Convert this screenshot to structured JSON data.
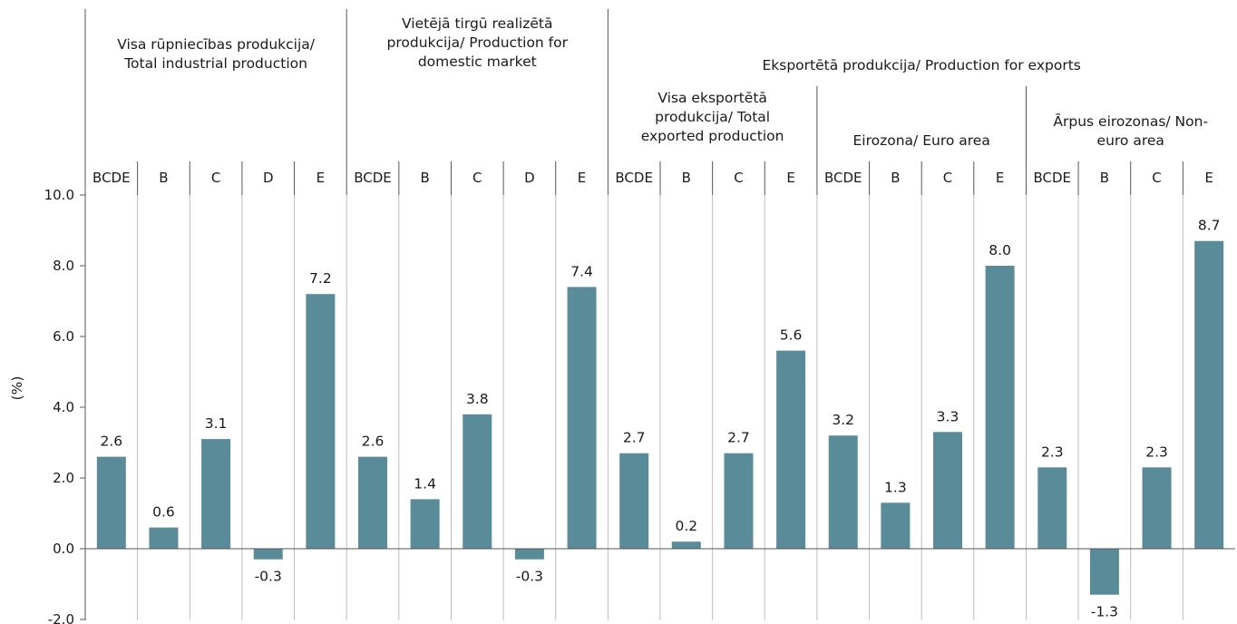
{
  "chart_data": {
    "type": "bar",
    "ylabel": "(%)",
    "ylim": [
      -2.0,
      10.0
    ],
    "yticks": [
      "-2.0",
      "0.0",
      "2.0",
      "4.0",
      "6.0",
      "8.0",
      "10.0"
    ],
    "bar_color": "#5a8b99",
    "grid": false,
    "categories": [
      "BCDE",
      "B",
      "C",
      "D",
      "E",
      "BCDE",
      "B",
      "C",
      "D",
      "E",
      "BCDE",
      "B",
      "C",
      "E",
      "BCDE",
      "B",
      "C",
      "E",
      "BCDE",
      "B",
      "C",
      "E"
    ],
    "values": [
      2.6,
      0.6,
      3.1,
      -0.3,
      7.2,
      2.6,
      1.4,
      3.8,
      -0.3,
      7.4,
      2.7,
      0.2,
      2.7,
      5.6,
      3.2,
      1.3,
      3.3,
      8.0,
      2.3,
      -1.3,
      2.3,
      8.7
    ],
    "value_labels": [
      "2.6",
      "0.6",
      "3.1",
      "-0.3",
      "7.2",
      "2.6",
      "1.4",
      "3.8",
      "-0.3",
      "7.4",
      "2.7",
      "0.2",
      "2.7",
      "5.6",
      "3.2",
      "1.3",
      "3.3",
      "8.0",
      "2.3",
      "-1.3",
      "2.3",
      "8.7"
    ],
    "groups": {
      "total": [
        "Visa rūpniecības produkcija/",
        "Total industrial production"
      ],
      "domestic": [
        "Vietējā tirgū realizētā",
        "produkcija/ Production for",
        "domestic market"
      ],
      "exports": [
        "Eksportētā produkcija/ Production for exports"
      ],
      "exp_total": [
        "Visa eksportētā",
        "produkcija/ Total",
        "exported production"
      ],
      "euro": [
        "Eirozona/ Euro area"
      ],
      "noneuro": [
        "Ārpus eirozonas/ Non-",
        "euro area"
      ]
    }
  }
}
